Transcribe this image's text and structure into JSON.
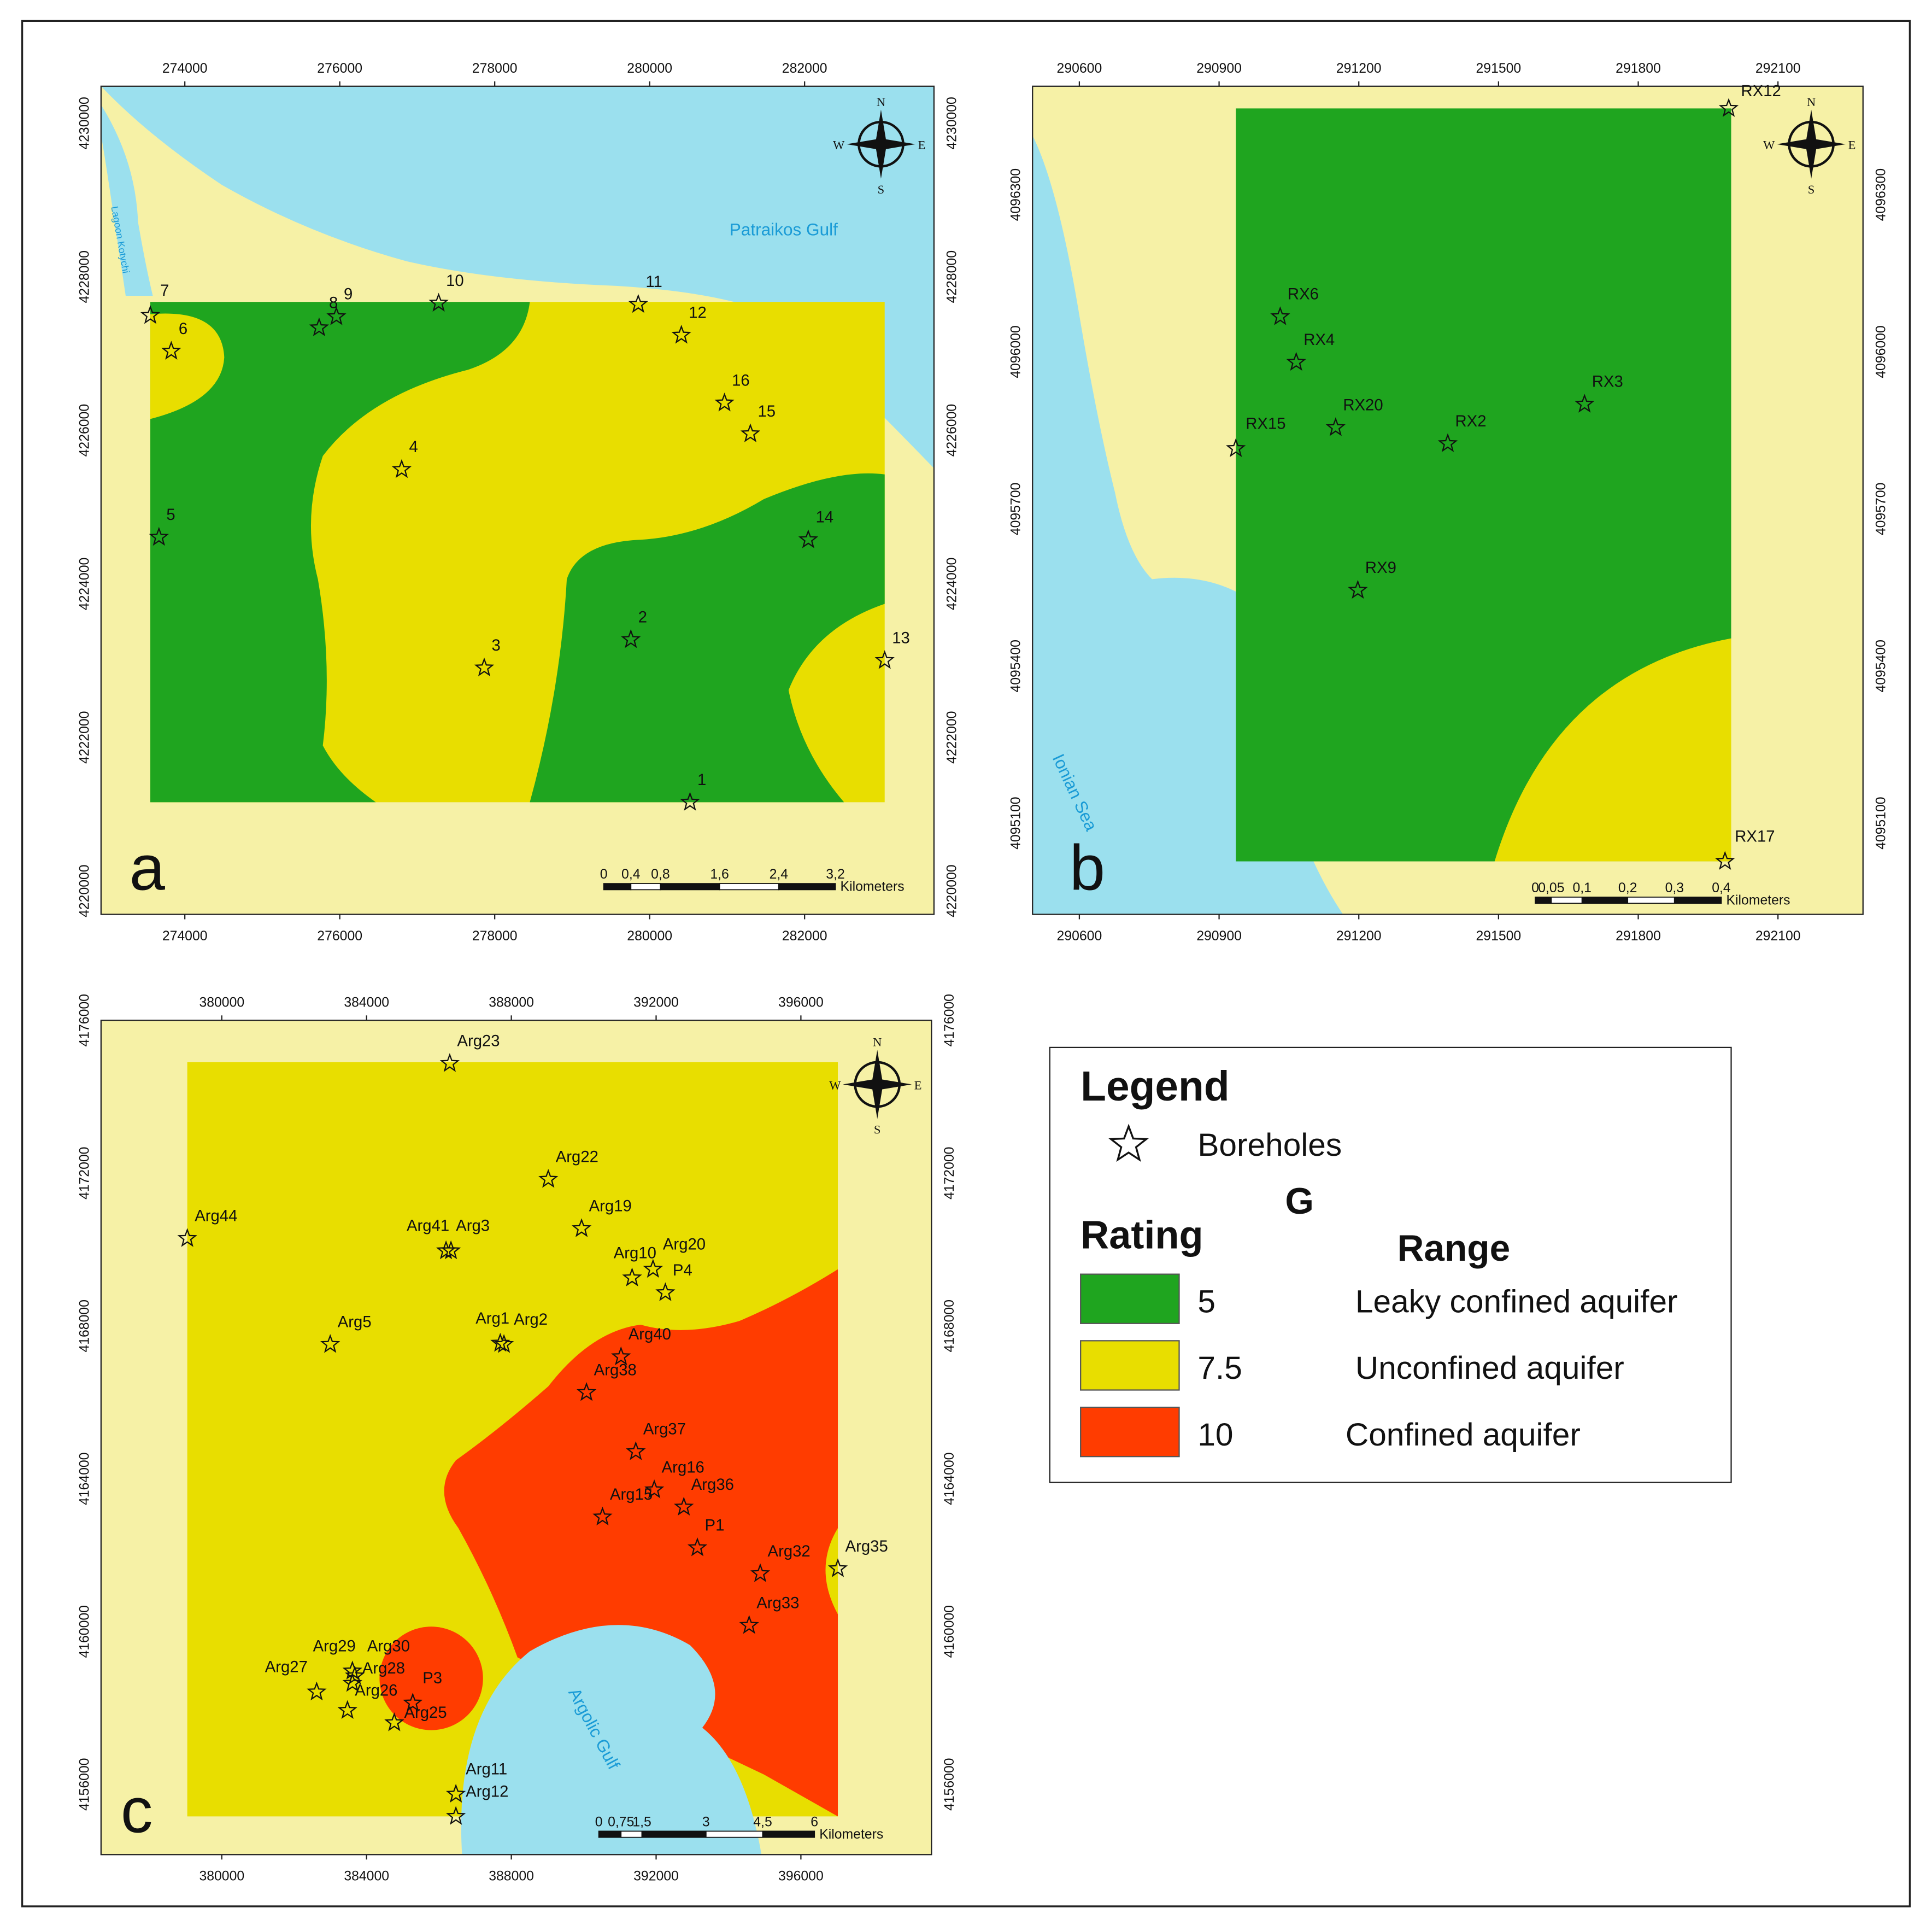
{
  "panels": [
    {
      "letter": "a",
      "top_ticks": [
        274000,
        276000,
        278000,
        280000,
        282000
      ],
      "side_ticks": [
        4230000,
        4228000,
        4226000,
        4224000,
        4222000,
        4220000
      ],
      "boreholes": [
        "1",
        "2",
        "3",
        "4",
        "5",
        "6",
        "7",
        "8",
        "9",
        "10",
        "11",
        "12",
        "13",
        "14",
        "15",
        "16"
      ],
      "places": [
        "Patraikos Gulf",
        "Lagoon Kotychi"
      ],
      "scale": {
        "labels": [
          "0",
          "0,4",
          "0,8",
          "1,6",
          "2,4",
          "3,2"
        ],
        "unit": "Kilometers"
      }
    },
    {
      "letter": "b",
      "top_ticks": [
        290600,
        290900,
        291200,
        291500,
        291800,
        292100
      ],
      "side_ticks": [
        4096300,
        4096000,
        4095700,
        4095400,
        4095100
      ],
      "boreholes": [
        "RX12",
        "RX6",
        "RX4",
        "RX20",
        "RX15",
        "RX2",
        "RX3",
        "RX9",
        "RX17"
      ],
      "places": [
        "Ionian Sea"
      ],
      "scale": {
        "labels": [
          "0",
          "0,05",
          "0,1",
          "0,2",
          "0,3",
          "0,4"
        ],
        "unit": "Kilometers"
      }
    },
    {
      "letter": "c",
      "top_ticks": [
        380000,
        384000,
        388000,
        392000,
        396000
      ],
      "side_ticks": [
        4176000,
        4172000,
        4168000,
        4164000,
        4160000,
        4156000
      ],
      "boreholes": [
        "Arg23",
        "Arg22",
        "Arg19",
        "Arg44",
        "Arg41",
        "Arg3",
        "Arg10",
        "Arg20",
        "P4",
        "Arg5",
        "Arg1",
        "Arg2",
        "Arg40",
        "Arg38",
        "Arg37",
        "Arg16",
        "Arg15",
        "Arg36",
        "P1",
        "Arg32",
        "Arg35",
        "Arg33",
        "Arg29",
        "Arg30",
        "Arg28",
        "Arg27",
        "Arg26",
        "P3",
        "Arg25",
        "Arg11",
        "Arg12"
      ],
      "places": [
        "Argolic Gulf"
      ],
      "scale": {
        "labels": [
          "0",
          "0,75",
          "1,5",
          "3",
          "4,5",
          "6"
        ],
        "unit": "Kilometers"
      }
    }
  ],
  "compass": {
    "n": "N",
    "s": "S",
    "e": "E",
    "w": "W"
  },
  "legend": {
    "title": "Legend",
    "borehole_label": "Boreholes",
    "parameter": "G",
    "rating_header": "Rating",
    "range_header": "Range",
    "entries": [
      {
        "rating": "5",
        "range": "Leaky confined aquifer",
        "color": "#1fa51f"
      },
      {
        "rating": "7.5",
        "range": "Unconfined aquifer",
        "color": "#e8de00"
      },
      {
        "rating": "10",
        "range": "Confined aquifer",
        "color": "#ff3c00"
      }
    ]
  }
}
